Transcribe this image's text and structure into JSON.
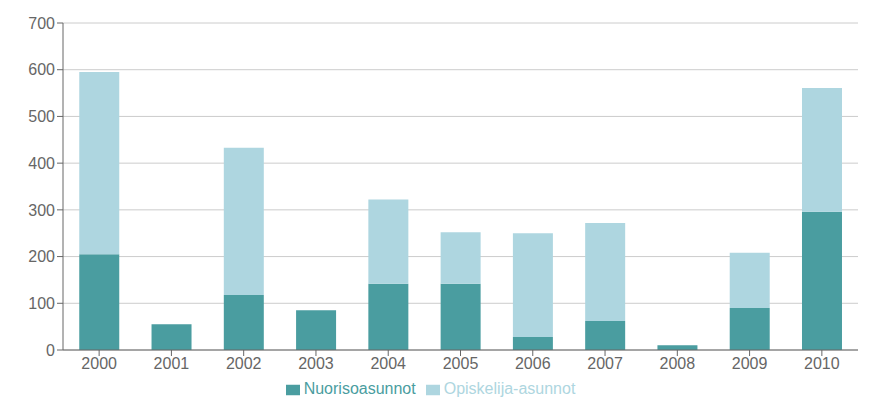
{
  "chart_data": {
    "type": "bar",
    "stacked": true,
    "categories": [
      "2000",
      "2001",
      "2002",
      "2003",
      "2004",
      "2005",
      "2006",
      "2007",
      "2008",
      "2009",
      "2010"
    ],
    "series": [
      {
        "name": "Nuorisoasunnot",
        "color": "#4a9da0",
        "values": [
          205,
          55,
          118,
          85,
          142,
          142,
          28,
          62,
          10,
          90,
          296
        ]
      },
      {
        "name": "Opiskelija-asunnot",
        "color": "#aed6e0",
        "values": [
          390,
          0,
          315,
          0,
          180,
          110,
          222,
          210,
          0,
          118,
          265
        ]
      }
    ],
    "ylim": [
      0,
      700
    ],
    "yticks": [
      0,
      100,
      200,
      300,
      400,
      500,
      600,
      700
    ],
    "grid": true,
    "legend": "bottom"
  }
}
